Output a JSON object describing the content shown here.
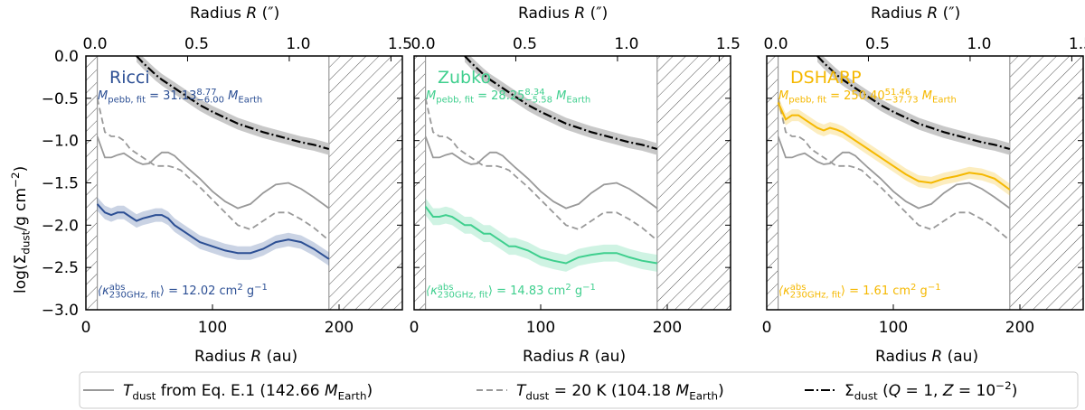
{
  "chart_data": {
    "type": "line",
    "xlabel": [
      {
        "t": "Radius "
      },
      {
        "t": "R",
        "italic": true
      },
      {
        "t": " (au)"
      }
    ],
    "x2label": [
      {
        "t": "Radius "
      },
      {
        "t": "R",
        "italic": true
      },
      {
        "t": " (″)"
      }
    ],
    "ylabel": [
      {
        "t": "log(Σ"
      },
      {
        "sub": "dust"
      },
      {
        "t": "/g cm"
      },
      {
        "sup": "−2"
      },
      {
        "t": ")"
      }
    ],
    "xlim": [
      0,
      250
    ],
    "xticks": [
      0,
      100,
      200
    ],
    "x2lim": [
      0,
      1.556
    ],
    "x2ticks": [
      {
        "value": 0,
        "label": "0.0"
      },
      0.5,
      {
        "value": 1,
        "label": "1.0"
      },
      1.5
    ],
    "ylim": [
      -3,
      0
    ],
    "yticks": [
      {
        "value": -3,
        "label": "−3.0"
      },
      {
        "value": -2.5,
        "label": "−2.5"
      },
      {
        "value": -2,
        "label": "−2.0"
      },
      {
        "value": -1.5,
        "label": "−1.5"
      },
      {
        "value": -1,
        "label": "−1.0"
      },
      {
        "value": -0.5,
        "label": "−0.5"
      },
      {
        "value": 0,
        "label": "0.0"
      }
    ],
    "masked_ranges": [
      [
        0,
        9
      ],
      [
        192,
        250
      ]
    ],
    "x": [
      9,
      15,
      20,
      25,
      30,
      35,
      40,
      45,
      50,
      55,
      60,
      65,
      70,
      75,
      80,
      90,
      100,
      110,
      120,
      130,
      140,
      150,
      160,
      170,
      180,
      192
    ],
    "common_series": [
      {
        "name": [
          {
            "t": "T",
            "italic": true
          },
          {
            "sub": "dust"
          },
          {
            "t": " from Eq. E.1 (142.66 "
          },
          {
            "t": "M",
            "italic": true
          },
          {
            "sub": "Earth"
          },
          {
            "t": ")"
          }
        ],
        "color": "#999999",
        "style": "solid",
        "values": [
          -0.95,
          -1.2,
          -1.2,
          -1.17,
          -1.15,
          -1.2,
          -1.25,
          -1.28,
          -1.27,
          -1.2,
          -1.14,
          -1.14,
          -1.18,
          -1.25,
          -1.32,
          -1.45,
          -1.6,
          -1.72,
          -1.8,
          -1.75,
          -1.62,
          -1.52,
          -1.5,
          -1.57,
          -1.67,
          -1.8
        ]
      },
      {
        "name": [
          {
            "t": "T",
            "italic": true
          },
          {
            "sub": "dust"
          },
          {
            "t": " = 20 K (104.18 "
          },
          {
            "t": "M",
            "italic": true
          },
          {
            "sub": "Earth"
          },
          {
            "t": ")"
          }
        ],
        "color": "#999999",
        "style": "dashed",
        "values": [
          -0.5,
          -0.9,
          -0.95,
          -0.95,
          -1.0,
          -1.1,
          -1.15,
          -1.2,
          -1.25,
          -1.3,
          -1.3,
          -1.3,
          -1.32,
          -1.35,
          -1.42,
          -1.55,
          -1.7,
          -1.85,
          -2.0,
          -2.05,
          -1.95,
          -1.85,
          -1.85,
          -1.93,
          -2.03,
          -2.18
        ]
      },
      {
        "name": [
          {
            "t": "Σ"
          },
          {
            "sub": "dust"
          },
          {
            "t": " ("
          },
          {
            "t": "Q",
            "italic": true
          },
          {
            "t": " = 1, "
          },
          {
            "t": "Z",
            "italic": true
          },
          {
            "t": " = 10"
          },
          {
            "sup": "−2"
          },
          {
            "t": ")"
          }
        ],
        "color": "#000000",
        "style": "dashdot",
        "band": 0.07,
        "band_color": "#c8c8c8",
        "values": [
          null,
          null,
          null,
          null,
          null,
          null,
          0,
          -0.08,
          -0.15,
          -0.22,
          -0.28,
          -0.33,
          -0.38,
          -0.43,
          -0.48,
          -0.58,
          -0.66,
          -0.73,
          -0.8,
          -0.85,
          -0.9,
          -0.94,
          -0.98,
          -1.02,
          -1.05,
          -1.1
        ]
      }
    ],
    "panels": [
      {
        "title": "Ricci",
        "color": "#2c4f94",
        "band": 0.08,
        "mass_label": [
          {
            "t": "M",
            "italic": true
          },
          {
            "sub": "pebb, fit"
          },
          {
            "t": " = 31.13"
          },
          {
            "sup": "8.77",
            "sub": "−6.00"
          },
          {
            "t": " M",
            "italic": true
          },
          {
            "sub": "Earth"
          }
        ],
        "kappa_label": [
          {
            "t": "⟨κ",
            "italic": true
          },
          {
            "sup": "abs",
            "sub": "230GHz, fit"
          },
          {
            "t": "⟩ = 12.02 cm"
          },
          {
            "sup": "2"
          },
          {
            "t": " g"
          },
          {
            "sup": "−1"
          }
        ],
        "values": [
          -1.75,
          -1.85,
          -1.88,
          -1.85,
          -1.85,
          -1.9,
          -1.95,
          -1.92,
          -1.9,
          -1.88,
          -1.88,
          -1.92,
          -2.0,
          -2.05,
          -2.1,
          -2.2,
          -2.25,
          -2.3,
          -2.33,
          -2.33,
          -2.28,
          -2.2,
          -2.17,
          -2.2,
          -2.28,
          -2.4
        ]
      },
      {
        "title": "Zubko",
        "color": "#3fcf8e",
        "band": 0.1,
        "mass_label": [
          {
            "t": "M",
            "italic": true
          },
          {
            "sub": "pebb, fit"
          },
          {
            "t": " = 28.25"
          },
          {
            "sup": "8.34",
            "sub": "−5.58"
          },
          {
            "t": " M",
            "italic": true
          },
          {
            "sub": "Earth"
          }
        ],
        "kappa_label": [
          {
            "t": "⟨κ",
            "italic": true
          },
          {
            "sup": "abs",
            "sub": "230GHz, fit"
          },
          {
            "t": "⟩ = 14.83 cm"
          },
          {
            "sup": "2"
          },
          {
            "t": " g"
          },
          {
            "sup": "−1"
          }
        ],
        "values": [
          -1.78,
          -1.9,
          -1.9,
          -1.88,
          -1.9,
          -1.95,
          -2.0,
          -2.0,
          -2.05,
          -2.1,
          -2.1,
          -2.15,
          -2.2,
          -2.25,
          -2.25,
          -2.3,
          -2.38,
          -2.42,
          -2.45,
          -2.38,
          -2.35,
          -2.33,
          -2.33,
          -2.38,
          -2.42,
          -2.45
        ]
      },
      {
        "title": "DSHARP",
        "color": "#f5b800",
        "band": 0.07,
        "mass_label": [
          {
            "t": "M",
            "italic": true
          },
          {
            "sub": "pebb, fit"
          },
          {
            "t": " = 250.40"
          },
          {
            "sup": "51.46",
            "sub": "−37.73"
          },
          {
            "t": " M",
            "italic": true
          },
          {
            "sub": "Earth"
          }
        ],
        "kappa_label": [
          {
            "t": "⟨κ",
            "italic": true
          },
          {
            "sup": "abs",
            "sub": "230GHz, fit"
          },
          {
            "t": "⟩ = 1.61 cm"
          },
          {
            "sup": "2"
          },
          {
            "t": " g"
          },
          {
            "sup": "−1"
          }
        ],
        "values": [
          -0.55,
          -0.75,
          -0.7,
          -0.7,
          -0.75,
          -0.8,
          -0.85,
          -0.88,
          -0.85,
          -0.87,
          -0.9,
          -0.95,
          -1.0,
          -1.05,
          -1.1,
          -1.2,
          -1.3,
          -1.4,
          -1.48,
          -1.5,
          -1.45,
          -1.42,
          -1.38,
          -1.4,
          -1.45,
          -1.58
        ]
      }
    ]
  }
}
